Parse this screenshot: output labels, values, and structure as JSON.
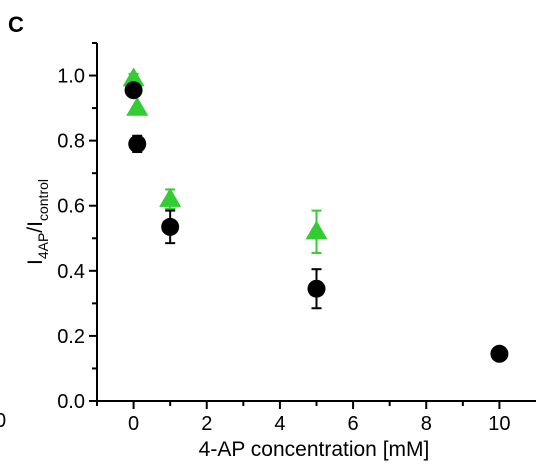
{
  "panel_label": "C",
  "edge_fragment": "0",
  "chart_data": {
    "type": "scatter",
    "xlabel": "4-AP concentration [mM]",
    "ylabel": {
      "base1": "I",
      "sub1": "4AP",
      "sep": "/",
      "base2": "I",
      "sub2": "control"
    },
    "xlim": [
      -1,
      11
    ],
    "ylim": [
      0,
      1.1
    ],
    "x_ticks": [
      "0",
      "2",
      "4",
      "6",
      "8",
      "10"
    ],
    "y_ticks": [
      "0.0",
      "0.2",
      "0.4",
      "0.6",
      "0.8",
      "1.0"
    ],
    "grid": false,
    "series": [
      {
        "marker": "triangle",
        "color": "#33cc33",
        "points": [
          {
            "x": 0.0,
            "y": 0.99,
            "err": 0.015
          },
          {
            "x": 0.1,
            "y": 0.9,
            "err": 0.0
          },
          {
            "x": 1.0,
            "y": 0.62,
            "err": 0.03
          },
          {
            "x": 5.0,
            "y": 0.52,
            "err": 0.065
          }
        ]
      },
      {
        "marker": "circle",
        "color": "#000000",
        "points": [
          {
            "x": 0.0,
            "y": 0.955,
            "err": 0.0
          },
          {
            "x": 0.1,
            "y": 0.79,
            "err": 0.025
          },
          {
            "x": 1.0,
            "y": 0.535,
            "err": 0.05
          },
          {
            "x": 5.0,
            "y": 0.345,
            "err": 0.06
          },
          {
            "x": 10.0,
            "y": 0.145,
            "err": 0.0
          }
        ]
      }
    ]
  }
}
